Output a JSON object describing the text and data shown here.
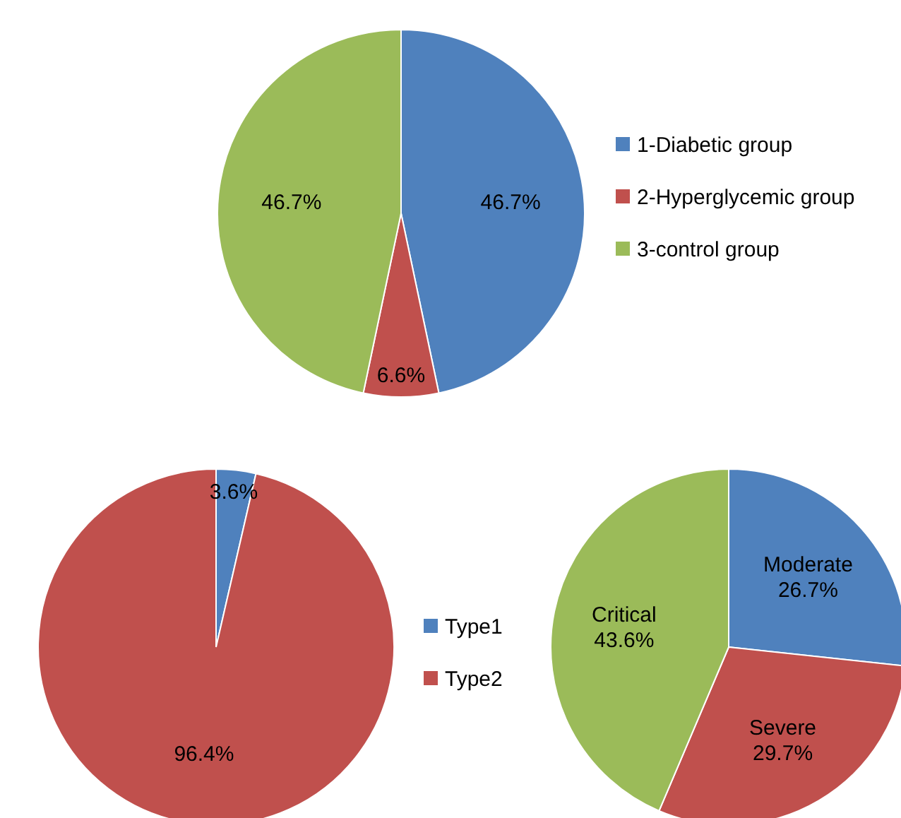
{
  "chart_data": [
    {
      "type": "pie",
      "categories": [
        "1-Diabetic group",
        "2-Hyperglycemic group",
        "3-control group"
      ],
      "values": [
        46.7,
        6.6,
        46.7
      ],
      "value_labels": [
        "46.7%",
        "6.6%",
        "46.7%"
      ],
      "colors": [
        "#4f81bd",
        "#c0504d",
        "#9bbb59"
      ],
      "legend": "right"
    },
    {
      "type": "pie",
      "categories": [
        "Type1",
        "Type2"
      ],
      "values": [
        3.6,
        96.4
      ],
      "value_labels": [
        "3.6%",
        "96.4%"
      ],
      "colors": [
        "#4f81bd",
        "#c0504d"
      ],
      "legend": "right"
    },
    {
      "type": "pie",
      "categories": [
        "Moderate",
        "Severe",
        "Critical"
      ],
      "values": [
        26.7,
        29.7,
        43.6
      ],
      "value_labels": [
        "26.7%",
        "29.7%",
        "43.6%"
      ],
      "colors": [
        "#4f81bd",
        "#c0504d",
        "#9bbb59"
      ],
      "legend": false
    }
  ]
}
